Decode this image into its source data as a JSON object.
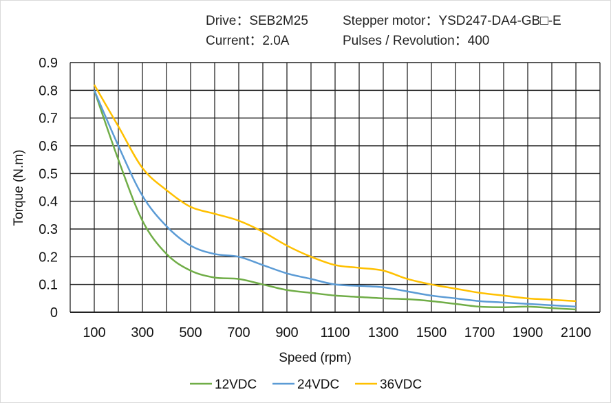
{
  "header": {
    "drive": "Drive：SEB2M25",
    "motor": "Stepper  motor：YSD247-DA4-GB□-E",
    "current": "Current：2.0A",
    "pulses": "Pulses / Revolution：400"
  },
  "chart_data": {
    "type": "line",
    "title": "",
    "xlabel": "Speed  (rpm)",
    "ylabel": "Torque (N.m)",
    "xlim": [
      0,
      2200
    ],
    "ylim": [
      0,
      0.9
    ],
    "grid": true,
    "legend_position": "bottom",
    "x_tick_labels": [
      "100",
      "300",
      "500",
      "700",
      "900",
      "1100",
      "1300",
      "1500",
      "1700",
      "1900",
      "2100"
    ],
    "y_tick_labels": [
      "0",
      "0.1",
      "0.2",
      "0.3",
      "0.4",
      "0.5",
      "0.6",
      "0.7",
      "0.8",
      "0.9"
    ],
    "x": [
      100,
      200,
      300,
      400,
      500,
      600,
      700,
      800,
      900,
      1000,
      1100,
      1200,
      1300,
      1400,
      1500,
      1600,
      1700,
      1800,
      1900,
      2000,
      2100
    ],
    "series": [
      {
        "name": "12VDC",
        "color": "#70ad47",
        "values": [
          0.8,
          0.55,
          0.33,
          0.21,
          0.15,
          0.125,
          0.12,
          0.1,
          0.08,
          0.07,
          0.06,
          0.055,
          0.05,
          0.047,
          0.04,
          0.03,
          0.02,
          0.018,
          0.02,
          0.015,
          0.01
        ]
      },
      {
        "name": "24VDC",
        "color": "#5b9bd5",
        "values": [
          0.8,
          0.6,
          0.42,
          0.31,
          0.24,
          0.21,
          0.2,
          0.17,
          0.14,
          0.12,
          0.1,
          0.095,
          0.09,
          0.075,
          0.06,
          0.05,
          0.04,
          0.035,
          0.03,
          0.025,
          0.02
        ]
      },
      {
        "name": "36VDC",
        "color": "#ffc000",
        "values": [
          0.82,
          0.67,
          0.52,
          0.44,
          0.38,
          0.355,
          0.33,
          0.29,
          0.24,
          0.2,
          0.17,
          0.16,
          0.15,
          0.12,
          0.1,
          0.085,
          0.07,
          0.06,
          0.05,
          0.045,
          0.04
        ]
      }
    ]
  }
}
